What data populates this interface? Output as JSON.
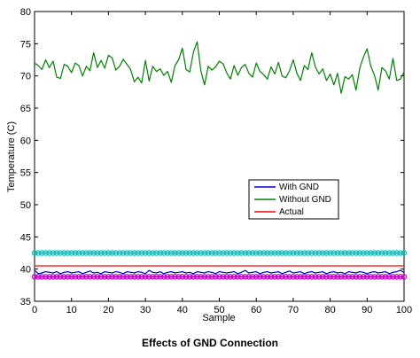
{
  "caption": "Effects of GND Connection",
  "chart_data": {
    "type": "line",
    "xlabel": "Sample",
    "ylabel": "Temperature (C)",
    "xlim": [
      0,
      100
    ],
    "ylim": [
      35,
      80
    ],
    "xticks": [
      0,
      10,
      20,
      30,
      40,
      50,
      60,
      70,
      80,
      90,
      100
    ],
    "yticks": [
      35,
      40,
      45,
      50,
      55,
      60,
      65,
      70,
      75,
      80
    ],
    "legend_position": "center-right",
    "series": [
      {
        "name": "With GND",
        "color": "#0000cc",
        "x": [
          0,
          1,
          2,
          3,
          4,
          5,
          6,
          7,
          8,
          9,
          10,
          11,
          12,
          13,
          14,
          15,
          16,
          17,
          18,
          19,
          20,
          21,
          22,
          23,
          24,
          25,
          26,
          27,
          28,
          29,
          30,
          31,
          32,
          33,
          34,
          35,
          36,
          37,
          38,
          39,
          40,
          41,
          42,
          43,
          44,
          45,
          46,
          47,
          48,
          49,
          50,
          51,
          52,
          53,
          54,
          55,
          56,
          57,
          58,
          59,
          60,
          61,
          62,
          63,
          64,
          65,
          66,
          67,
          68,
          69,
          70,
          71,
          72,
          73,
          74,
          75,
          76,
          77,
          78,
          79,
          80,
          81,
          82,
          83,
          84,
          85,
          86,
          87,
          88,
          89,
          90,
          91,
          92,
          93,
          94,
          95,
          96,
          97,
          98,
          99,
          100
        ],
        "values": [
          39.8,
          39.3,
          39.4,
          39.6,
          39.5,
          39.4,
          39.6,
          39.3,
          39.5,
          39.6,
          39.4,
          39.5,
          39.6,
          39.3,
          39.5,
          39.7,
          39.4,
          39.5,
          39.3,
          39.6,
          39.5,
          39.4,
          39.6,
          39.5,
          39.3,
          39.6,
          39.5,
          39.4,
          39.6,
          39.5,
          39.3,
          39.8,
          39.5,
          39.4,
          39.6,
          39.3,
          39.5,
          39.6,
          39.4,
          39.5,
          39.6,
          39.4,
          39.5,
          39.3,
          39.6,
          39.5,
          39.4,
          39.6,
          39.5,
          39.3,
          39.6,
          39.5,
          39.4,
          39.5,
          39.6,
          39.3,
          39.5,
          39.8,
          39.4,
          39.5,
          39.6,
          39.3,
          39.5,
          39.6,
          39.4,
          39.5,
          39.6,
          39.3,
          39.5,
          39.7,
          39.4,
          39.5,
          39.6,
          39.3,
          39.5,
          39.6,
          39.4,
          39.5,
          39.6,
          39.3,
          39.5,
          39.6,
          39.4,
          39.5,
          39.3,
          39.6,
          39.5,
          39.4,
          39.6,
          39.5,
          39.3,
          39.5,
          39.6,
          39.4,
          39.5,
          39.6,
          39.3,
          39.5,
          39.6,
          39.8,
          39.5
        ]
      },
      {
        "name": "Without GND",
        "color": "#008000",
        "x": [
          0,
          1,
          2,
          3,
          4,
          5,
          6,
          7,
          8,
          9,
          10,
          11,
          12,
          13,
          14,
          15,
          16,
          17,
          18,
          19,
          20,
          21,
          22,
          23,
          24,
          25,
          26,
          27,
          28,
          29,
          30,
          31,
          32,
          33,
          34,
          35,
          36,
          37,
          38,
          39,
          40,
          41,
          42,
          43,
          44,
          45,
          46,
          47,
          48,
          49,
          50,
          51,
          52,
          53,
          54,
          55,
          56,
          57,
          58,
          59,
          60,
          61,
          62,
          63,
          64,
          65,
          66,
          67,
          68,
          69,
          70,
          71,
          72,
          73,
          74,
          75,
          76,
          77,
          78,
          79,
          80,
          81,
          82,
          83,
          84,
          85,
          86,
          87,
          88,
          89,
          90,
          91,
          92,
          93,
          94,
          95,
          96,
          97,
          98,
          99,
          100
        ],
        "values": [
          72.0,
          71.6,
          71.0,
          72.5,
          71.3,
          72.3,
          69.8,
          69.6,
          71.8,
          71.5,
          70.5,
          72.0,
          71.6,
          70.0,
          71.5,
          70.8,
          73.6,
          71.3,
          72.4,
          71.2,
          73.2,
          72.8,
          70.9,
          71.5,
          72.6,
          71.8,
          71.0,
          69.1,
          69.8,
          68.9,
          72.4,
          69.2,
          71.5,
          70.7,
          71.1,
          70.1,
          70.7,
          69.0,
          71.6,
          72.5,
          74.3,
          71.0,
          70.6,
          73.7,
          75.3,
          70.8,
          68.6,
          71.5,
          70.9,
          71.4,
          72.3,
          71.9,
          70.5,
          69.5,
          71.6,
          70.1,
          71.3,
          71.8,
          70.4,
          69.8,
          72.0,
          70.7,
          70.2,
          69.5,
          71.4,
          70.3,
          72.1,
          70.0,
          69.7,
          70.8,
          72.5,
          70.4,
          69.3,
          71.6,
          71.0,
          73.6,
          71.4,
          70.3,
          71.1,
          69.3,
          70.3,
          68.6,
          70.4,
          67.3,
          69.9,
          69.5,
          70.2,
          67.8,
          71.2,
          72.9,
          74.2,
          71.5,
          70.1,
          67.8,
          71.3,
          70.8,
          69.5,
          72.7,
          69.3,
          69.5,
          70.6
        ]
      },
      {
        "name": "Actual",
        "color": "#ff0000",
        "x": [
          0,
          100
        ],
        "values": [
          40.5,
          40.5
        ]
      }
    ],
    "bands": [
      {
        "color": "#00c0c0",
        "y": 42.5
      },
      {
        "color": "#c000c0",
        "y": 38.8
      }
    ]
  }
}
